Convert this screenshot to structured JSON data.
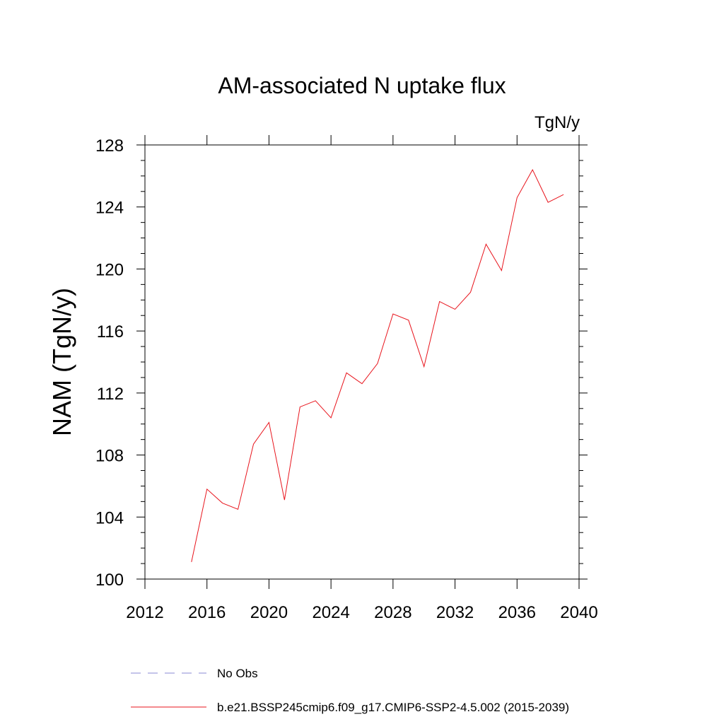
{
  "chart_data": {
    "type": "line",
    "title": "AM-associated N uptake flux",
    "units": "TgN/y",
    "ylabel": "NAM  (TgN/y)",
    "xlabel": "",
    "xlim": [
      2012,
      2040
    ],
    "ylim": [
      100,
      128
    ],
    "x_ticks": [
      "2012",
      "2016",
      "2020",
      "2024",
      "2028",
      "2032",
      "2036",
      "2040"
    ],
    "y_ticks": [
      "100",
      "104",
      "108",
      "112",
      "116",
      "120",
      "124",
      "128"
    ],
    "x_tick_values": [
      2012,
      2016,
      2020,
      2024,
      2028,
      2032,
      2036,
      2040
    ],
    "y_tick_values": [
      100,
      104,
      108,
      112,
      116,
      120,
      124,
      128
    ],
    "x": [
      2015,
      2016,
      2017,
      2018,
      2019,
      2020,
      2021,
      2022,
      2023,
      2024,
      2025,
      2026,
      2027,
      2028,
      2029,
      2030,
      2031,
      2032,
      2033,
      2034,
      2035,
      2036,
      2037,
      2038,
      2039
    ],
    "series": [
      {
        "name": "b.e21.BSSP245cmip6.f09_g17.CMIP6-SSP2-4.5.002 (2015-2039)",
        "color": "#e8141c",
        "values": [
          101.1,
          105.8,
          104.9,
          104.5,
          108.7,
          110.1,
          105.1,
          111.1,
          111.5,
          110.4,
          113.3,
          112.6,
          113.9,
          117.1,
          116.7,
          113.7,
          117.9,
          117.4,
          118.5,
          121.6,
          119.9,
          124.6,
          126.4,
          124.3,
          124.8
        ]
      }
    ],
    "legend": {
      "placement": "bottom",
      "entries": [
        {
          "label": "No Obs",
          "style": "dashed",
          "color": "#8a8ad6"
        },
        {
          "label": "b.e21.BSSP245cmip6.f09_g17.CMIP6-SSP2-4.5.002 (2015-2039)",
          "style": "solid",
          "color": "#e8141c"
        }
      ]
    }
  }
}
